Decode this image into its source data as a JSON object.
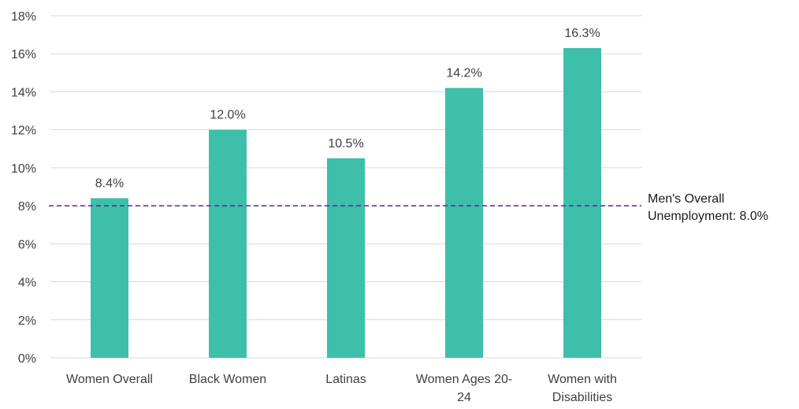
{
  "chart_data": {
    "type": "bar",
    "title": "",
    "xlabel": "",
    "ylabel": "",
    "ylim": [
      0,
      18
    ],
    "y_ticks": [
      0,
      2,
      4,
      6,
      8,
      10,
      12,
      14,
      16,
      18
    ],
    "y_tick_format": "%",
    "grid": true,
    "legend": "none",
    "bar_color": "#3dbfaa",
    "categories": [
      [
        "Women Overall"
      ],
      [
        "Black Women"
      ],
      [
        "Latinas"
      ],
      [
        "Women Ages 20-",
        "24"
      ],
      [
        "Women with",
        "Disabilities"
      ]
    ],
    "values": [
      8.4,
      12.0,
      10.5,
      14.2,
      16.3
    ],
    "data_labels": [
      "8.4%",
      "12.0%",
      "10.5%",
      "14.2%",
      "16.3%"
    ],
    "reference_line": {
      "value": 8.0,
      "color": "#5b2a86",
      "style": "dashed",
      "label_lines": [
        "Men's Overall",
        "Unemployment: 8.0%"
      ]
    }
  }
}
